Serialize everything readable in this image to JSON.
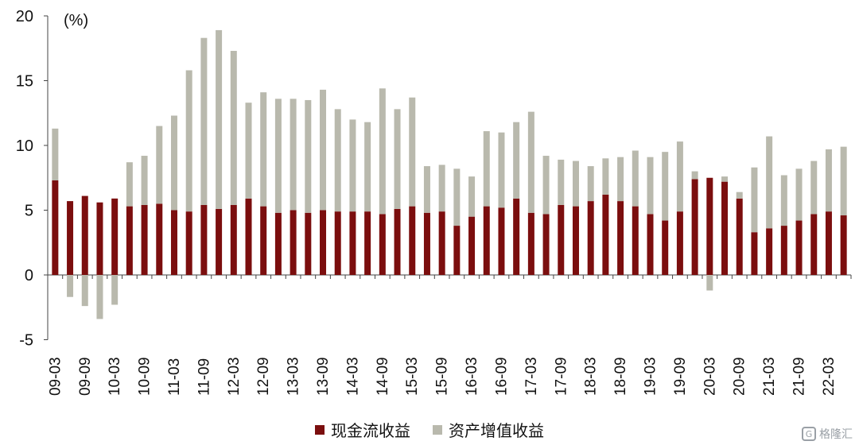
{
  "chart_data": {
    "type": "bar",
    "stacked": true,
    "unit_label": "(%)",
    "ylim": [
      -5,
      20
    ],
    "yticks": [
      -5,
      0,
      5,
      10,
      15,
      20
    ],
    "ytick_labels": [
      "-5",
      "0",
      "5",
      "10",
      "15",
      "20"
    ],
    "xtick_labels": [
      "09-03",
      "09-09",
      "10-03",
      "10-09",
      "11-03",
      "11-09",
      "12-03",
      "12-09",
      "13-03",
      "13-09",
      "14-03",
      "14-09",
      "15-03",
      "15-09",
      "16-03",
      "16-09",
      "17-03",
      "17-09",
      "18-03",
      "18-09",
      "19-03",
      "19-09",
      "20-03",
      "20-09",
      "21-03",
      "21-09",
      "22-03"
    ],
    "num_quarters": 54,
    "series": [
      {
        "name": "现金流收益",
        "color": "#7b0e0e",
        "values": [
          7.3,
          5.7,
          6.1,
          5.6,
          5.9,
          5.3,
          5.4,
          5.5,
          5.0,
          4.9,
          5.4,
          5.1,
          5.4,
          5.9,
          5.3,
          4.8,
          5.0,
          4.8,
          5.0,
          4.9,
          4.9,
          4.9,
          4.7,
          5.1,
          5.3,
          4.8,
          4.9,
          3.8,
          4.5,
          5.3,
          5.2,
          5.9,
          4.8,
          4.7,
          5.4,
          5.3,
          5.7,
          6.2,
          5.7,
          5.3,
          4.7,
          4.2,
          4.9,
          7.4,
          7.5,
          7.2,
          5.9,
          3.3,
          3.6,
          3.8,
          4.2,
          4.7,
          4.9,
          4.6
        ]
      },
      {
        "name": "资产增值收益",
        "color": "#b9b9ad",
        "values": [
          4.0,
          -1.7,
          -2.4,
          -3.4,
          -2.3,
          3.4,
          3.8,
          6.0,
          7.3,
          10.9,
          12.9,
          13.8,
          11.9,
          7.4,
          8.8,
          8.8,
          8.6,
          8.7,
          9.3,
          7.9,
          7.1,
          6.9,
          9.7,
          7.7,
          8.4,
          3.6,
          3.6,
          4.4,
          3.1,
          5.8,
          5.8,
          5.9,
          7.8,
          4.5,
          3.5,
          3.5,
          2.7,
          2.8,
          3.4,
          4.3,
          4.4,
          5.3,
          5.4,
          0.6,
          -1.2,
          0.4,
          0.5,
          5.0,
          7.1,
          3.9,
          4.0,
          4.1,
          4.8,
          5.3
        ]
      }
    ]
  },
  "watermark": "格隆汇"
}
